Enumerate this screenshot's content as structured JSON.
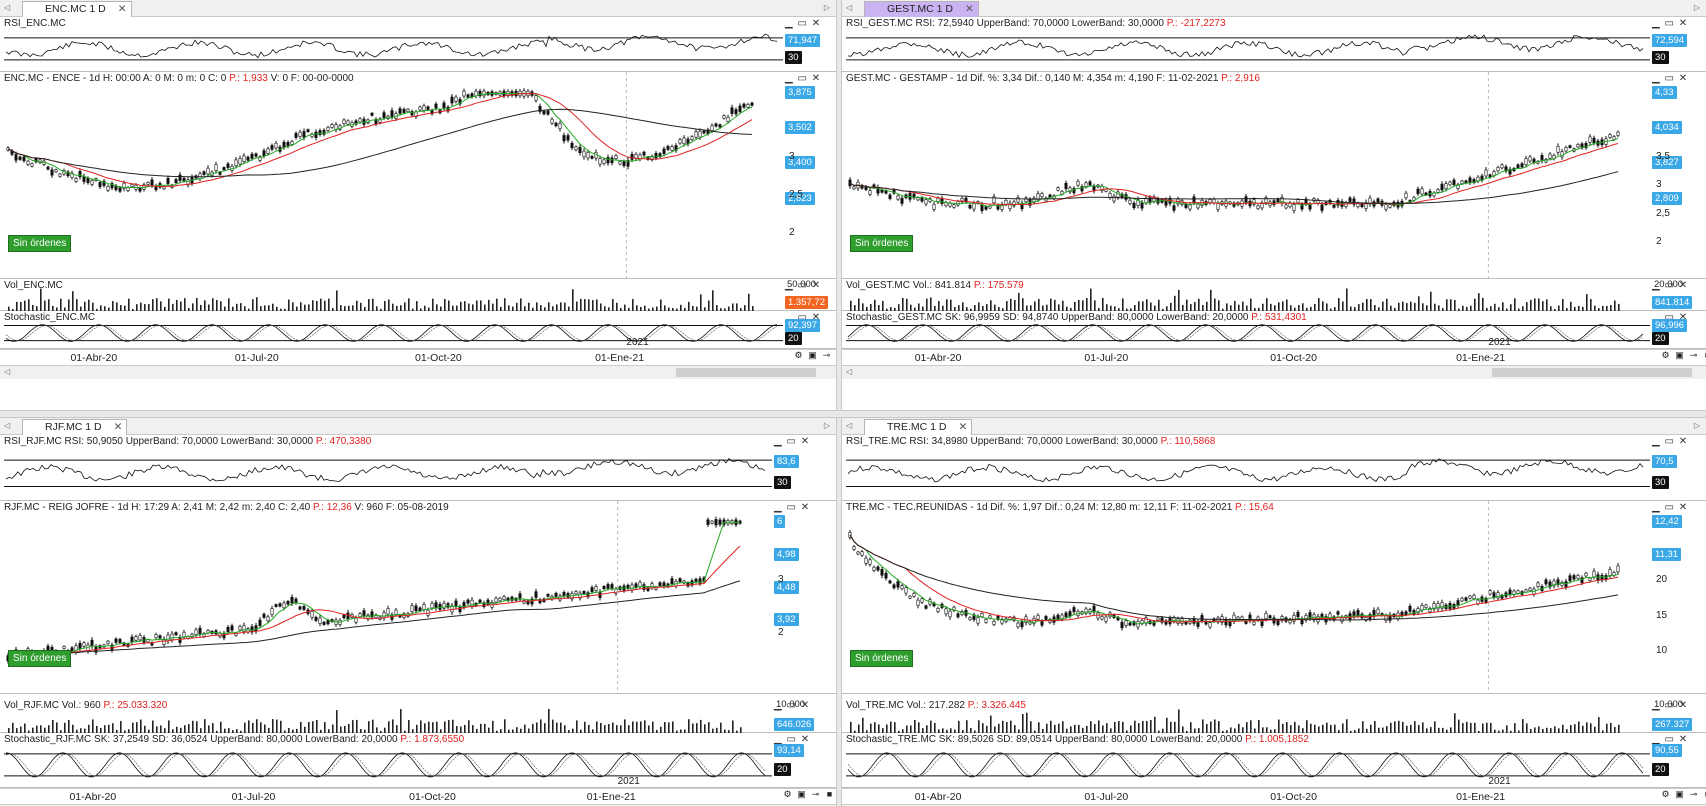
{
  "panels": [
    {
      "tab": {
        "label": "ENC.MC 1 D",
        "close": "✕"
      },
      "rsi": {
        "title": "RSI_ENC.MC",
        "extra": "",
        "p": "",
        "tag_value": "71,947",
        "tag_level": "30"
      },
      "price": {
        "title": "ENC.MC - ENCE - 1d  H: 00:00  A: 0  M: 0  m: 0  C: 0  ",
        "p": "P.: 1,933",
        "tail": "  V: 0  F: 00-00-0000",
        "tags": [
          "3,875",
          "3,502",
          "3,400",
          "2,823"
        ],
        "axis": [
          "3",
          "2,5",
          "2"
        ],
        "badge": "Sin órdenes"
      },
      "vol": {
        "title": "Vol_ENC.MC",
        "p": "",
        "tag_value": "1.357,72",
        "axis": "50.000"
      },
      "stoch": {
        "title": "Stochastic_ENC.MC",
        "p": "",
        "tag_value": "92,397",
        "tag_level": "20",
        "year": "2021"
      },
      "dates": [
        "01-Abr-20",
        "01-Jul-20",
        "01-Oct-20",
        "01-Ene-21"
      ]
    },
    {
      "tab": {
        "label": "GEST.MC 1 D",
        "close": "✕"
      },
      "rsi": {
        "title": "RSI_GEST.MC  RSI: 72,5940  UpperBand: 70,0000  LowerBand: 30,0000  ",
        "p": "P.: -217,2273",
        "tag_value": "72,594",
        "tag_level": "30"
      },
      "price": {
        "title": "GEST.MC - GESTAMP -  1d  Dif. %: 3,34  Dif.: 0,140  M: 4,354  m: 4,190  F: 11-02-2021  ",
        "p": "P.: 2,916",
        "tail": "",
        "tags": [
          "4,33",
          "4,034",
          "3,827",
          "2,809"
        ],
        "axis": [
          "3,5",
          "3",
          "2,5",
          "2"
        ],
        "badge": "Sin órdenes"
      },
      "vol": {
        "title": "Vol_GEST.MC  Vol.: 841.814  ",
        "p": "P.: 175.579",
        "tag_value": "841.814",
        "axis": "20.000"
      },
      "stoch": {
        "title": "Stochastic_GEST.MC  SK: 96,9959  SD: 94,8740  UpperBand: 80,0000  LowerBand: 20,0000  ",
        "p": "P.: 531,4301",
        "tag_value": "96,996",
        "tag_level": "20",
        "year": "2021"
      },
      "dates": [
        "01-Abr-20",
        "01-Jul-20",
        "01-Oct-20",
        "01-Ene-21"
      ]
    },
    {
      "tab": {
        "label": "RJF.MC 1 D",
        "close": "✕"
      },
      "rsi": {
        "title": "RSI_RJF.MC  RSI: 50,9050  UpperBand: 70,0000  LowerBand: 30,0000  ",
        "p": "P.: 470,3380",
        "tag_value": "83,6",
        "tag_level": "30"
      },
      "price": {
        "title": "RJF.MC - REIG JOFRE - 1d  H: 17:29  A: 2,41  M: 2,42  m: 2,40  C: 2,40  ",
        "p": "P.: 12,36",
        "tail": "  V: 960  F: 05-08-2019",
        "tags": [
          "6",
          "4,98",
          "4,48",
          "3,92"
        ],
        "axis": [
          "3",
          "2"
        ],
        "badge": "Sin órdenes"
      },
      "vol": {
        "title": "Vol_RJF.MC  Vol.: 960  ",
        "p": "P.: 25.033.320",
        "tag_value": "646.026",
        "axis": "10.000"
      },
      "stoch": {
        "title": "Stochastic_RJF.MC  SK: 37,2549  SD: 36,0524  UpperBand: 80,0000  LowerBand: 20,0000  ",
        "p": "P.: 1.873,6550",
        "tag_value": "93,14",
        "tag_level": "20",
        "year": "2021"
      },
      "dates": [
        "01-Abr-20",
        "01-Jul-20",
        "01-Oct-20",
        "01-Ene-21"
      ]
    },
    {
      "tab": {
        "label": "TRE.MC 1 D",
        "close": "✕"
      },
      "rsi": {
        "title": "RSI_TRE.MC  RSI: 34,8980  UpperBand: 70,0000  LowerBand: 30,0000  ",
        "p": "P.: 110,5868",
        "tag_value": "70,5",
        "tag_level": "30"
      },
      "price": {
        "title": "TRE.MC - TEC.REUNIDAS -  1d  Dif. %: 1,97  Dif.: 0,24  M: 12,80  m: 12,11  F: 11-02-2021  ",
        "p": "P.: 15,64",
        "tail": "",
        "tags": [
          "12,42",
          "11,31"
        ],
        "axis": [
          "20",
          "15",
          "10"
        ],
        "badge": "Sin órdenes"
      },
      "vol": {
        "title": "Vol_TRE.MC  Vol.: 217.282  ",
        "p": "P.: 3.326.445",
        "tag_value": "267.327",
        "axis": "10.000"
      },
      "stoch": {
        "title": "Stochastic_TRE.MC  SK: 89,5026  SD: 89,0514  UpperBand: 80,0000  LowerBand: 20,0000  ",
        "p": "P.: 1.005,1852",
        "tag_value": "90,55",
        "tag_level": "20",
        "year": "2021"
      },
      "dates": [
        "01-Abr-20",
        "01-Jul-20",
        "01-Oct-20",
        "01-Ene-21"
      ]
    }
  ],
  "colors": {
    "candle": "#111111",
    "ma_short": "#22aa22",
    "ma_mid": "#e02020",
    "ma_long": "#222222",
    "tag_blue": "#3aa8e6",
    "accent_purple": "#c9b3f0"
  }
}
